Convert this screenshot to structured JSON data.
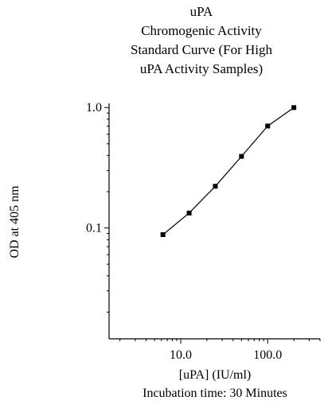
{
  "chart_data": {
    "type": "line",
    "title": [
      "uPA",
      "Chromogenic Activity",
      "Standard Curve (For High",
      "uPA Activity Samples)"
    ],
    "xlabel": "[uPA]  (IU/ml)",
    "xlabel_note": "Incubation time: 30 Minutes",
    "ylabel": "OD at 405 nm",
    "x_scale": "log",
    "y_scale": "log",
    "xlim": [
      1.5,
      400
    ],
    "ylim": [
      0.012,
      1.05
    ],
    "x_ticks": [
      {
        "value": 10,
        "label": "10.0"
      },
      {
        "value": 100,
        "label": "100.0"
      }
    ],
    "y_ticks": [
      {
        "value": 0.1,
        "label": "0.1"
      },
      {
        "value": 1.0,
        "label": "1.0"
      }
    ],
    "grid": false,
    "legend": "none",
    "marker": "square",
    "color": "#000000",
    "series": [
      {
        "x": [
          6.25,
          12.5,
          25,
          50,
          100,
          200
        ],
        "y": [
          0.088,
          0.133,
          0.222,
          0.393,
          0.702,
          0.999
        ]
      }
    ]
  }
}
